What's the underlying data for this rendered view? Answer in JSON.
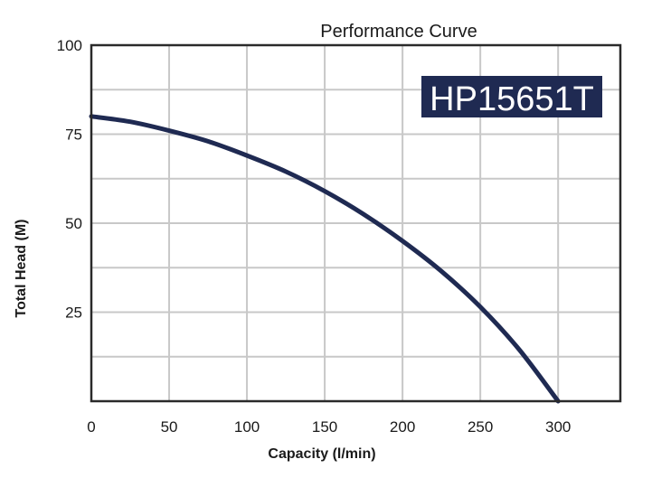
{
  "chart_data": {
    "type": "line",
    "title": "Performance Curve",
    "xlabel": "Capacity (l/min)",
    "ylabel": "Total Head (M)",
    "xlim": [
      0,
      340
    ],
    "ylim": [
      0,
      100
    ],
    "x_ticks": [
      0,
      50,
      100,
      150,
      200,
      250,
      300
    ],
    "x_tick_labels": [
      "0",
      "50",
      "100",
      "150",
      "200",
      "250",
      "300"
    ],
    "y_ticks": [
      25,
      50,
      75,
      100
    ],
    "y_tick_labels": [
      "25",
      "50",
      "75",
      "100"
    ],
    "x_grid": [
      50,
      100,
      150,
      200,
      250,
      300
    ],
    "y_grid": [
      12.5,
      25,
      37.5,
      50,
      62.5,
      75,
      87.5
    ],
    "grid": true,
    "annotation": "HP15651T",
    "series": [
      {
        "color": "#1f2a52",
        "x": [
          0,
          25,
          50,
          75,
          100,
          125,
          150,
          175,
          200,
          225,
          250,
          275,
          300
        ],
        "y": [
          80,
          78.5,
          76,
          73,
          69,
          64.5,
          59,
          52.5,
          45,
          36.5,
          26.5,
          14.5,
          0
        ]
      }
    ]
  }
}
